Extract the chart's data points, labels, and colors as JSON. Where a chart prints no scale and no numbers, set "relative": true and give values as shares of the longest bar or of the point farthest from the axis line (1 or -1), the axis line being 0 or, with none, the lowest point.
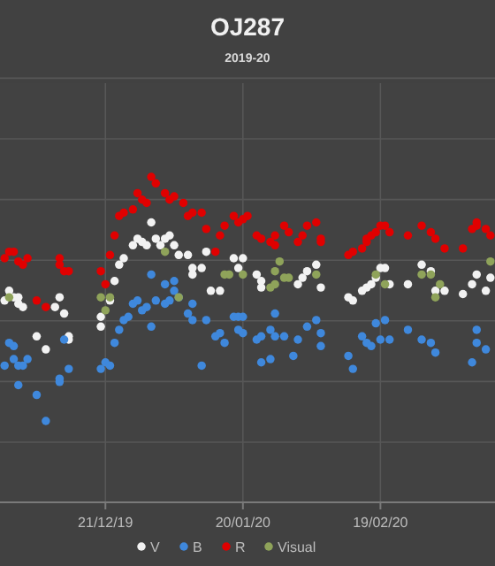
{
  "chart_data": {
    "type": "scatter",
    "title": "OJ287",
    "subtitle": "2019-20",
    "relative": true,
    "grid": true,
    "legend": "bottom",
    "marker": "circle",
    "xlim": [
      "2019-11-28",
      "2020-03-15"
    ],
    "xticks": [
      {
        "value": "2019-12-21",
        "label": "21/12/19"
      },
      {
        "value": "2020-01-20",
        "label": "20/01/20"
      },
      {
        "value": "2020-02-19",
        "label": "19/02/20"
      }
    ],
    "series": [
      {
        "name": "V",
        "color": "#f2f2f2",
        "x": [
          "2019-11-29",
          "2019-11-30",
          "2019-12-01",
          "2019-12-02",
          "2019-12-02",
          "2019-12-03",
          "2019-12-06",
          "2019-12-08",
          "2019-12-10",
          "2019-12-11",
          "2019-12-12",
          "2019-12-13",
          "2019-12-13",
          "2019-12-20",
          "2019-12-20",
          "2019-12-22",
          "2019-12-23",
          "2019-12-24",
          "2019-12-25",
          "2019-12-27",
          "2019-12-28",
          "2019-12-29",
          "2019-12-30",
          "2019-12-31",
          "2020-01-01",
          "2020-01-02",
          "2020-01-03",
          "2020-01-04",
          "2020-01-05",
          "2020-01-06",
          "2020-01-08",
          "2020-01-09",
          "2020-01-09",
          "2020-01-11",
          "2020-01-12",
          "2020-01-13",
          "2020-01-15",
          "2020-01-18",
          "2020-01-19",
          "2020-01-20",
          "2020-01-23",
          "2020-01-24",
          "2020-01-24",
          "2020-02-01",
          "2020-02-02",
          "2020-02-03",
          "2020-02-05",
          "2020-02-06",
          "2020-02-12",
          "2020-02-13",
          "2020-02-15",
          "2020-02-16",
          "2020-02-17",
          "2020-02-18",
          "2020-02-19",
          "2020-02-20",
          "2020-02-21",
          "2020-02-25",
          "2020-02-28",
          "2020-03-01",
          "2020-03-02",
          "2020-03-04",
          "2020-03-08",
          "2020-03-10",
          "2020-03-11",
          "2020-03-13",
          "2020-03-14"
        ],
        "values": [
          0.62,
          0.65,
          0.63,
          0.61,
          0.63,
          0.6,
          0.51,
          0.47,
          0.6,
          0.63,
          0.58,
          0.51,
          0.5,
          0.54,
          0.57,
          0.62,
          0.68,
          0.73,
          0.75,
          0.79,
          0.81,
          0.8,
          0.79,
          0.86,
          0.81,
          0.79,
          0.81,
          0.82,
          0.79,
          0.76,
          0.76,
          0.72,
          0.7,
          0.72,
          0.77,
          0.65,
          0.65,
          0.75,
          0.72,
          0.75,
          0.7,
          0.66,
          0.68,
          0.67,
          0.69,
          0.71,
          0.73,
          0.66,
          0.63,
          0.62,
          0.65,
          0.66,
          0.67,
          0.69,
          0.72,
          0.72,
          0.67,
          0.67,
          0.73,
          0.71,
          0.65,
          0.65,
          0.64,
          0.67,
          0.7,
          0.65,
          0.69
        ]
      },
      {
        "name": "B",
        "color": "#3f88dc",
        "x": [
          "2019-11-29",
          "2019-11-30",
          "2019-12-01",
          "2019-12-01",
          "2019-12-02",
          "2019-12-02",
          "2019-12-03",
          "2019-12-04",
          "2019-12-06",
          "2019-12-08",
          "2019-12-11",
          "2019-12-11",
          "2019-12-12",
          "2019-12-13",
          "2019-12-20",
          "2019-12-21",
          "2019-12-22",
          "2019-12-23",
          "2019-12-24",
          "2019-12-25",
          "2019-12-26",
          "2019-12-27",
          "2019-12-28",
          "2019-12-29",
          "2019-12-30",
          "2019-12-31",
          "2019-12-31",
          "2020-01-01",
          "2020-01-03",
          "2020-01-03",
          "2020-01-04",
          "2020-01-05",
          "2020-01-05",
          "2020-01-06",
          "2020-01-08",
          "2020-01-09",
          "2020-01-09",
          "2020-01-11",
          "2020-01-12",
          "2020-01-14",
          "2020-01-15",
          "2020-01-16",
          "2020-01-18",
          "2020-01-19",
          "2020-01-19",
          "2020-01-20",
          "2020-01-20",
          "2020-01-23",
          "2020-01-24",
          "2020-01-24",
          "2020-01-26",
          "2020-01-26",
          "2020-01-27",
          "2020-01-27",
          "2020-01-29",
          "2020-01-31",
          "2020-02-01",
          "2020-02-03",
          "2020-02-05",
          "2020-02-06",
          "2020-02-06",
          "2020-02-12",
          "2020-02-13",
          "2020-02-15",
          "2020-02-16",
          "2020-02-17",
          "2020-02-18",
          "2020-02-19",
          "2020-02-20",
          "2020-02-21",
          "2020-02-25",
          "2020-02-28",
          "2020-03-01",
          "2020-03-02",
          "2020-03-10",
          "2020-03-11",
          "2020-03-11",
          "2020-03-13"
        ],
        "values": [
          0.42,
          0.49,
          0.48,
          0.44,
          0.42,
          0.36,
          0.42,
          0.44,
          0.33,
          0.25,
          0.38,
          0.37,
          0.5,
          0.41,
          0.41,
          0.43,
          0.42,
          0.49,
          0.53,
          0.56,
          0.57,
          0.61,
          0.62,
          0.59,
          0.6,
          0.7,
          0.54,
          0.62,
          0.67,
          0.61,
          0.62,
          0.65,
          0.68,
          0.63,
          0.58,
          0.61,
          0.56,
          0.42,
          0.56,
          0.51,
          0.52,
          0.49,
          0.57,
          0.57,
          0.53,
          0.57,
          0.52,
          0.5,
          0.51,
          0.43,
          0.53,
          0.44,
          0.51,
          0.58,
          0.51,
          0.45,
          0.5,
          0.54,
          0.56,
          0.52,
          0.48,
          0.45,
          0.41,
          0.51,
          0.49,
          0.48,
          0.55,
          0.5,
          0.56,
          0.5,
          0.53,
          0.5,
          0.49,
          0.46,
          0.43,
          0.49,
          0.53,
          0.47
        ]
      },
      {
        "name": "R",
        "color": "#e00000",
        "x": [
          "2019-11-29",
          "2019-11-30",
          "2019-12-01",
          "2019-12-02",
          "2019-12-03",
          "2019-12-04",
          "2019-12-06",
          "2019-12-08",
          "2019-12-11",
          "2019-12-11",
          "2019-12-12",
          "2019-12-13",
          "2019-12-20",
          "2019-12-21",
          "2019-12-22",
          "2019-12-23",
          "2019-12-24",
          "2019-12-25",
          "2019-12-27",
          "2019-12-28",
          "2019-12-29",
          "2019-12-30",
          "2019-12-31",
          "2020-01-01",
          "2020-01-03",
          "2020-01-04",
          "2020-01-05",
          "2020-01-07",
          "2020-01-08",
          "2020-01-09",
          "2020-01-11",
          "2020-01-12",
          "2020-01-14",
          "2020-01-15",
          "2020-01-16",
          "2020-01-18",
          "2020-01-19",
          "2020-01-20",
          "2020-01-21",
          "2020-01-23",
          "2020-01-24",
          "2020-01-26",
          "2020-01-27",
          "2020-01-27",
          "2020-01-29",
          "2020-01-30",
          "2020-02-01",
          "2020-02-02",
          "2020-02-03",
          "2020-02-05",
          "2020-02-06",
          "2020-02-06",
          "2020-02-12",
          "2020-02-13",
          "2020-02-15",
          "2020-02-16",
          "2020-02-16",
          "2020-02-17",
          "2020-02-18",
          "2020-02-19",
          "2020-02-20",
          "2020-02-21",
          "2020-02-25",
          "2020-02-28",
          "2020-03-01",
          "2020-03-02",
          "2020-03-04",
          "2020-03-08",
          "2020-03-10",
          "2020-03-11",
          "2020-03-11",
          "2020-03-13",
          "2020-03-14"
        ],
        "values": [
          0.75,
          0.77,
          0.77,
          0.74,
          0.73,
          0.75,
          0.62,
          0.6,
          0.75,
          0.73,
          0.71,
          0.71,
          0.71,
          0.67,
          0.76,
          0.82,
          0.88,
          0.89,
          0.9,
          0.95,
          0.93,
          0.92,
          1.0,
          0.98,
          0.95,
          0.93,
          0.94,
          0.92,
          0.88,
          0.89,
          0.89,
          0.84,
          0.77,
          0.82,
          0.85,
          0.88,
          0.86,
          0.87,
          0.88,
          0.82,
          0.81,
          0.8,
          0.79,
          0.82,
          0.85,
          0.83,
          0.8,
          0.82,
          0.85,
          0.86,
          0.81,
          0.8,
          0.76,
          0.77,
          0.78,
          0.8,
          0.81,
          0.82,
          0.83,
          0.85,
          0.85,
          0.83,
          0.82,
          0.85,
          0.83,
          0.81,
          0.78,
          0.78,
          0.84,
          0.86,
          0.85,
          0.84,
          0.82
        ]
      },
      {
        "name": "Visual",
        "color": "#8fa35a",
        "x": [
          "2019-11-30",
          "2019-12-20",
          "2019-12-21",
          "2019-12-22",
          "2020-01-03",
          "2020-01-06",
          "2020-01-16",
          "2020-01-17",
          "2020-01-20",
          "2020-01-26",
          "2020-01-27",
          "2020-01-27",
          "2020-01-28",
          "2020-01-29",
          "2020-01-30",
          "2020-02-05",
          "2020-02-18",
          "2020-02-20",
          "2020-02-28",
          "2020-03-01",
          "2020-03-02",
          "2020-03-03",
          "2020-03-14"
        ],
        "values": [
          0.63,
          0.63,
          0.59,
          0.63,
          0.77,
          0.63,
          0.7,
          0.7,
          0.7,
          0.66,
          0.71,
          0.67,
          0.74,
          0.69,
          0.69,
          0.7,
          0.7,
          0.67,
          0.7,
          0.7,
          0.63,
          0.67,
          0.74
        ]
      }
    ]
  }
}
